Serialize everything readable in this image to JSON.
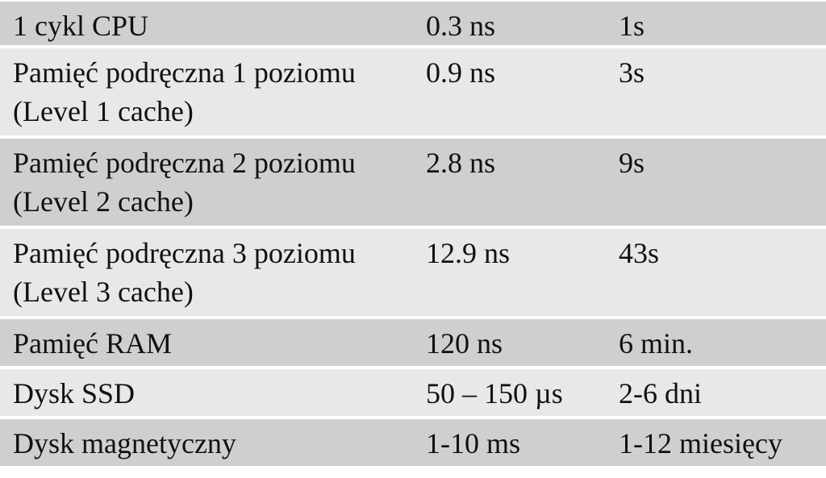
{
  "table": {
    "rows": [
      {
        "name": "1 cykl CPU",
        "time": "0.3 ns",
        "scaled": "1s"
      },
      {
        "name": "Pamięć podręczna 1 poziomu (Level 1 cache)",
        "time": "0.9 ns",
        "scaled": "3s"
      },
      {
        "name": "Pamięć podręczna 2 poziomu (Level 2 cache)",
        "time": "2.8 ns",
        "scaled": "9s"
      },
      {
        "name": "Pamięć podręczna 3 poziomu (Level 3 cache)",
        "time": "12.9 ns",
        "scaled": "43s"
      },
      {
        "name": "Pamięć RAM",
        "time": "120 ns",
        "scaled": "6 min."
      },
      {
        "name": "Dysk SSD",
        "time": "50 – 150 µs",
        "scaled": "2-6 dni"
      },
      {
        "name": "Dysk magnetyczny",
        "time": "1-10 ms",
        "scaled": "1-12 miesięcy"
      }
    ]
  },
  "colors": {
    "row_dark": "#cfcfcf",
    "row_light": "#e8e8e8",
    "text": "#111111"
  }
}
